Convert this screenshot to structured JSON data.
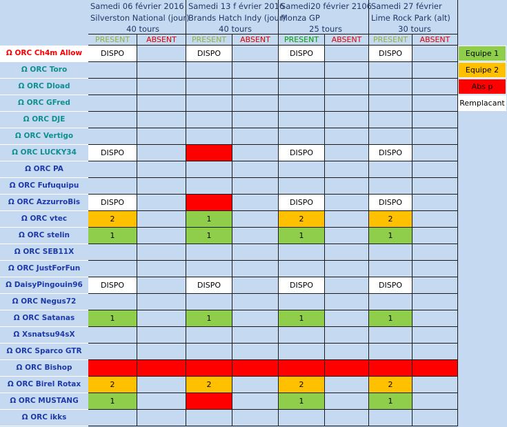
{
  "races": [
    {
      "line1": "Samedi 06 février 2016",
      "line2": "Silverston National (jour)",
      "line3": "40 tours"
    },
    {
      "line1": "Samedi 13 f évrier 2016",
      "line2": "Brands Hatch Indy (jour)",
      "line3": "40 tours"
    },
    {
      "line1": "Samedi20 février 2106",
      "line2": "Monza GP",
      "line3": "25 tours"
    },
    {
      "line1": "Samedi 27 février",
      "line2": "Lime Rock Park (alt)",
      "line3": "30 tours"
    }
  ],
  "present_label": "PRESENT",
  "absent_label": "ABSENT",
  "legend": [
    {
      "label": "Equipe 1",
      "color": "#8fce4a"
    },
    {
      "label": "Equipe 2",
      "color": "#ffc000"
    },
    {
      "label": "Abs p",
      "color": "#ff0000"
    },
    {
      "label": "Remplacant",
      "color": "#ffffff"
    }
  ],
  "cell_colors": {
    "dispo": "#ffffff",
    "equipe1": "#8fce4a",
    "equipe2": "#ffc000",
    "abs": "#ff0000",
    "empty": "#c5d9f1"
  },
  "pilots": [
    {
      "name": "Ω ORC Ch4m Allow",
      "style": "first",
      "cells": [
        [
          "dispo",
          "DISPO"
        ],
        "",
        [
          "dispo",
          "DISPO"
        ],
        "",
        [
          "dispo",
          "DISPO"
        ],
        "",
        [
          "dispo",
          "DISPO"
        ],
        ""
      ]
    },
    {
      "name": "Ω ORC Toro",
      "style": "teal",
      "cells": [
        "",
        "",
        "",
        "",
        "",
        "",
        "",
        ""
      ]
    },
    {
      "name": "Ω ORC Dload",
      "style": "teal",
      "cells": [
        "",
        "",
        "",
        "",
        "",
        "",
        "",
        ""
      ]
    },
    {
      "name": "Ω ORC GFred",
      "style": "teal",
      "cells": [
        "",
        "",
        "",
        "",
        "",
        "",
        "",
        ""
      ]
    },
    {
      "name": "Ω ORC DJE",
      "style": "teal",
      "cells": [
        "",
        "",
        "",
        "",
        "",
        "",
        "",
        ""
      ]
    },
    {
      "name": "Ω ORC Vertigo",
      "style": "teal",
      "cells": [
        "",
        "",
        "",
        "",
        "",
        "",
        "",
        ""
      ]
    },
    {
      "name": "Ω ORC LUCKY34",
      "style": "teal",
      "cells": [
        [
          "dispo",
          "DISPO"
        ],
        "",
        [
          "red",
          ""
        ],
        "",
        [
          "dispo",
          "DISPO"
        ],
        "",
        [
          "dispo",
          "DISPO"
        ],
        ""
      ]
    },
    {
      "name": "Ω ORC PA",
      "style": "blue",
      "cells": [
        "",
        "",
        "",
        "",
        "",
        "",
        "",
        ""
      ]
    },
    {
      "name": "Ω ORC Fufuquipu",
      "style": "blue",
      "cells": [
        "",
        "",
        "",
        "",
        "",
        "",
        "",
        ""
      ]
    },
    {
      "name": "Ω ORC AzzurroBis",
      "style": "blue",
      "cells": [
        [
          "dispo",
          "DISPO"
        ],
        "",
        [
          "red",
          ""
        ],
        "",
        [
          "dispo",
          "DISPO"
        ],
        "",
        [
          "dispo",
          "DISPO"
        ],
        ""
      ]
    },
    {
      "name": "Ω ORC vtec",
      "style": "blue",
      "cells": [
        [
          "c2",
          "2"
        ],
        "",
        [
          "c1",
          "1"
        ],
        "",
        [
          "c2",
          "2"
        ],
        "",
        [
          "c2",
          "2"
        ],
        ""
      ]
    },
    {
      "name": "Ω ORC stelin",
      "style": "blue",
      "cells": [
        [
          "c1",
          "1"
        ],
        "",
        [
          "c1",
          "1"
        ],
        "",
        [
          "c1",
          "1"
        ],
        "",
        [
          "c1",
          "1"
        ],
        ""
      ]
    },
    {
      "name": "Ω ORC SEB11X",
      "style": "blue",
      "cells": [
        "",
        "",
        "",
        "",
        "",
        "",
        "",
        ""
      ]
    },
    {
      "name": "Ω ORC JustForFun",
      "style": "blue",
      "cells": [
        "",
        "",
        "",
        "",
        "",
        "",
        "",
        ""
      ]
    },
    {
      "name": "Ω DaisyPingouin96",
      "style": "blue",
      "cells": [
        [
          "dispo",
          "DISPO"
        ],
        "",
        [
          "dispo",
          "DISPO"
        ],
        "",
        [
          "dispo",
          "DISPO"
        ],
        "",
        [
          "dispo",
          "DISPO"
        ],
        ""
      ]
    },
    {
      "name": "Ω ORC Negus72",
      "style": "blue",
      "cells": [
        "",
        "",
        "",
        "",
        "",
        "",
        "",
        ""
      ]
    },
    {
      "name": "Ω ORC Satanas",
      "style": "blue",
      "cells": [
        [
          "c1",
          "1"
        ],
        "",
        [
          "c1",
          "1"
        ],
        "",
        [
          "c1",
          "1"
        ],
        "",
        [
          "c1",
          "1"
        ],
        ""
      ]
    },
    {
      "name": "Ω Xsnatsu94sX",
      "style": "blue",
      "cells": [
        "",
        "",
        "",
        "",
        "",
        "",
        "",
        ""
      ]
    },
    {
      "name": "Ω ORC Sparco GTR",
      "style": "blue",
      "cells": [
        "",
        "",
        "",
        "",
        "",
        "",
        "",
        ""
      ]
    },
    {
      "name": "Ω ORC Bishop",
      "style": "blue",
      "cells": [
        [
          "red",
          ""
        ],
        [
          "red",
          ""
        ],
        [
          "red",
          ""
        ],
        [
          "red",
          ""
        ],
        [
          "red",
          ""
        ],
        [
          "red",
          ""
        ],
        [
          "red",
          ""
        ],
        [
          "red",
          ""
        ]
      ]
    },
    {
      "name": "Ω ORC Birel Rotax",
      "style": "blue",
      "cells": [
        [
          "c2",
          "2"
        ],
        "",
        [
          "c2",
          "2"
        ],
        "",
        [
          "c2",
          "2"
        ],
        "",
        [
          "c2",
          "2"
        ],
        ""
      ]
    },
    {
      "name": "Ω ORC MUSTANG",
      "style": "blue",
      "cells": [
        [
          "c1",
          "1"
        ],
        "",
        [
          "red",
          ""
        ],
        "",
        [
          "c1",
          "1"
        ],
        "",
        [
          "c1",
          "1"
        ],
        ""
      ]
    },
    {
      "name": "Ω ORC ikks",
      "style": "blue",
      "cells": [
        "",
        "",
        "",
        "",
        "",
        "",
        "",
        ""
      ]
    }
  ]
}
